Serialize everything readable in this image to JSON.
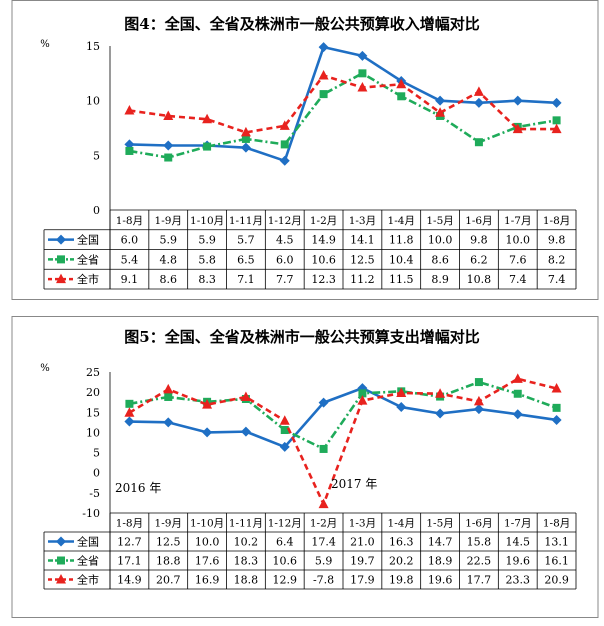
{
  "chart_data": [
    {
      "type": "line",
      "title": "图4：全国、全省及株洲市一般公共预算收入增幅对比",
      "ylabel": "%",
      "ylim": [
        0,
        15
      ],
      "yticks": [
        0,
        5,
        10,
        15
      ],
      "categories": [
        "1-8月",
        "1-9月",
        "1-10月",
        "1-11月",
        "1-12月",
        "1-2月",
        "1-3月",
        "1-4月",
        "1-5月",
        "1-6月",
        "1-7月",
        "1-8月"
      ],
      "series": [
        {
          "name": "全国",
          "color": "#1f6fc4",
          "values": [
            6.0,
            5.9,
            5.9,
            5.7,
            4.5,
            14.9,
            14.1,
            11.8,
            10.0,
            9.8,
            10.0,
            9.8
          ],
          "labels": [
            "6.0",
            "5.9",
            "5.9",
            "5.7",
            "4.5",
            "14.9",
            "14.1",
            "11.8",
            "10.0",
            "9.8",
            "10.0",
            "9.8"
          ]
        },
        {
          "name": "全省",
          "color": "#1fab5a",
          "values": [
            5.4,
            4.8,
            5.8,
            6.5,
            6.0,
            10.6,
            12.5,
            10.4,
            8.6,
            6.2,
            7.6,
            8.2
          ],
          "labels": [
            "5.4",
            "4.8",
            "5.8",
            "6.5",
            "6.0",
            "10.6",
            "12.5",
            "10.4",
            "8.6",
            "6.2",
            "7.6",
            "8.2"
          ]
        },
        {
          "name": "全市",
          "color": "#e8221e",
          "values": [
            9.1,
            8.6,
            8.3,
            7.1,
            7.7,
            12.3,
            11.2,
            11.5,
            8.9,
            10.8,
            7.4,
            7.4
          ],
          "labels": [
            "9.1",
            "8.6",
            "8.3",
            "7.1",
            "7.7",
            "12.3",
            "11.2",
            "11.5",
            "8.9",
            "10.8",
            "7.4",
            "7.4"
          ]
        }
      ],
      "annotations": []
    },
    {
      "type": "line",
      "title": "图5：全国、全省及株洲市一般公共预算支出增幅对比",
      "ylabel": "%",
      "ylim": [
        -10,
        25
      ],
      "yticks": [
        -10,
        -5,
        0,
        5,
        10,
        15,
        20,
        25
      ],
      "categories": [
        "1-8月",
        "1-9月",
        "1-10月",
        "1-11月",
        "1-12月",
        "1-2月",
        "1-3月",
        "1-4月",
        "1-5月",
        "1-6月",
        "1-7月",
        "1-8月"
      ],
      "series": [
        {
          "name": "全国",
          "color": "#1f6fc4",
          "values": [
            12.7,
            12.5,
            10.0,
            10.2,
            6.4,
            17.4,
            21.0,
            16.3,
            14.7,
            15.8,
            14.5,
            13.1
          ],
          "labels": [
            "12.7",
            "12.5",
            "10.0",
            "10.2",
            "6.4",
            "17.4",
            "21.0",
            "16.3",
            "14.7",
            "15.8",
            "14.5",
            "13.1"
          ]
        },
        {
          "name": "全省",
          "color": "#1fab5a",
          "values": [
            17.1,
            18.8,
            17.6,
            18.3,
            10.6,
            5.9,
            19.7,
            20.2,
            18.9,
            22.5,
            19.6,
            16.1
          ],
          "labels": [
            "17.1",
            "18.8",
            "17.6",
            "18.3",
            "10.6",
            "5.9",
            "19.7",
            "20.2",
            "18.9",
            "22.5",
            "19.6",
            "16.1"
          ]
        },
        {
          "name": "全市",
          "color": "#e8221e",
          "values": [
            14.9,
            20.7,
            16.9,
            18.8,
            12.9,
            -7.8,
            17.9,
            19.8,
            19.6,
            17.7,
            23.3,
            20.9
          ],
          "labels": [
            "14.9",
            "20.7",
            "16.9",
            "18.8",
            "12.9",
            "-7.8",
            "17.9",
            "19.8",
            "19.6",
            "17.7",
            "23.3",
            "20.9"
          ]
        }
      ],
      "annotations": [
        "2016 年",
        "2017 年"
      ]
    }
  ]
}
